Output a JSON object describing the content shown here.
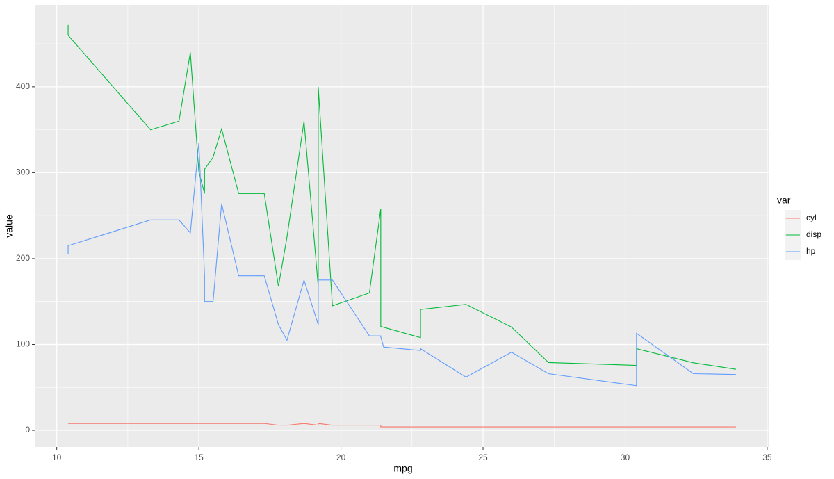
{
  "chart_data": {
    "type": "line",
    "x_label": "mpg",
    "y_label": "value",
    "legend_title": "var",
    "legend_position": "right",
    "grid": true,
    "xlim": [
      9.225,
      35.075
    ],
    "ylim": [
      -19.4,
      495.4
    ],
    "xticks": [
      10,
      15,
      20,
      25,
      30,
      35
    ],
    "yticks": [
      0,
      100,
      200,
      300,
      400
    ],
    "xminor": [
      12.5,
      17.5,
      22.5,
      27.5,
      32.5
    ],
    "yminor": [
      50,
      150,
      250,
      350,
      450
    ],
    "x": [
      10.4,
      10.4,
      13.3,
      14.3,
      14.7,
      15.0,
      15.2,
      15.2,
      15.5,
      15.8,
      16.4,
      17.3,
      17.8,
      18.1,
      18.7,
      19.2,
      19.2,
      19.7,
      21.0,
      21.0,
      21.4,
      21.4,
      21.5,
      22.8,
      22.8,
      24.4,
      26.0,
      27.3,
      30.4,
      30.4,
      32.4,
      33.9
    ],
    "series": [
      {
        "name": "cyl",
        "color": "#F8766D",
        "values": [
          8,
          8,
          8,
          8,
          8,
          8,
          8,
          8,
          8,
          8,
          8,
          8,
          6,
          6,
          8,
          6,
          8,
          6,
          6,
          6,
          6,
          4,
          4,
          4,
          4,
          4,
          4,
          4,
          4,
          4,
          4,
          4
        ]
      },
      {
        "name": "disp",
        "color": "#00BA38",
        "values": [
          472,
          460,
          350,
          360,
          440,
          301,
          275.8,
          304,
          318,
          351,
          275.8,
          275.8,
          167.6,
          225,
          360,
          167.6,
          400,
          145,
          160,
          160,
          258,
          121,
          120.1,
          108,
          140.8,
          146.7,
          120.3,
          79,
          75.7,
          95.1,
          78.7,
          71.1
        ]
      },
      {
        "name": "hp",
        "color": "#619CFF",
        "values": [
          205,
          215,
          245,
          245,
          230,
          335,
          180,
          150,
          150,
          264,
          180,
          180,
          123,
          105,
          175,
          123,
          175,
          175,
          110,
          110,
          110,
          109,
          97,
          93,
          95,
          62,
          91,
          66,
          52,
          113,
          66,
          65
        ]
      }
    ]
  }
}
